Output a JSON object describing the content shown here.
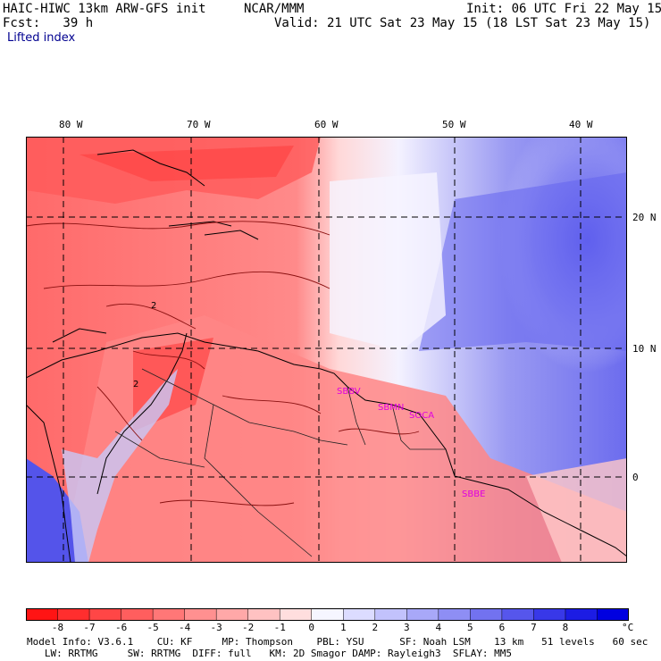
{
  "header": {
    "model": "HAIC-HIWC 13km ARW-GFS init",
    "org": "NCAR/MMM",
    "init": "Init: 06 UTC Fri 22 May 15",
    "fcst": "Fcst:   39 h",
    "valid": "Valid: 21 UTC Sat 23 May 15 (18 LST Sat 23 May 15)",
    "field": "Lifted index"
  },
  "lon_labels": [
    "80 W",
    "70 W",
    "60 W",
    "50 W",
    "40 W"
  ],
  "lat_labels": [
    "20 N",
    "10 N",
    "0"
  ],
  "contour_labels": [
    "2",
    "2"
  ],
  "stations": [
    "SBBV",
    "SBMN",
    "SOCA",
    "SBBE"
  ],
  "colorbar": {
    "ticks": [
      "-8",
      "-7",
      "-6",
      "-5",
      "-4",
      "-3",
      "-2",
      "-1",
      "0",
      "1",
      "2",
      "3",
      "4",
      "5",
      "6",
      "7",
      "8"
    ],
    "unit": "°C",
    "colors": [
      "#ff1414",
      "#ff2e2e",
      "#ff4646",
      "#ff5e5e",
      "#ff7777",
      "#ff9090",
      "#ffa8a8",
      "#ffc2c2",
      "#ffdede",
      "#f6f6ff",
      "#dcdcff",
      "#c2c2fc",
      "#a8a8f8",
      "#8e8ef4",
      "#7272f0",
      "#5656ec",
      "#3838e8",
      "#1c1ce4",
      "#0000e0"
    ]
  },
  "footer": {
    "line1": "Model Info: V3.6.1    CU: KF     MP: Thompson    PBL: YSU      SF: Noah LSM    13 km   51 levels   60 sec",
    "line2": "   LW: RRTMG     SW: RRTMG  DIFF: full   KM: 2D Smagor DAMP: Rayleigh3  SFLAY: MM5"
  }
}
